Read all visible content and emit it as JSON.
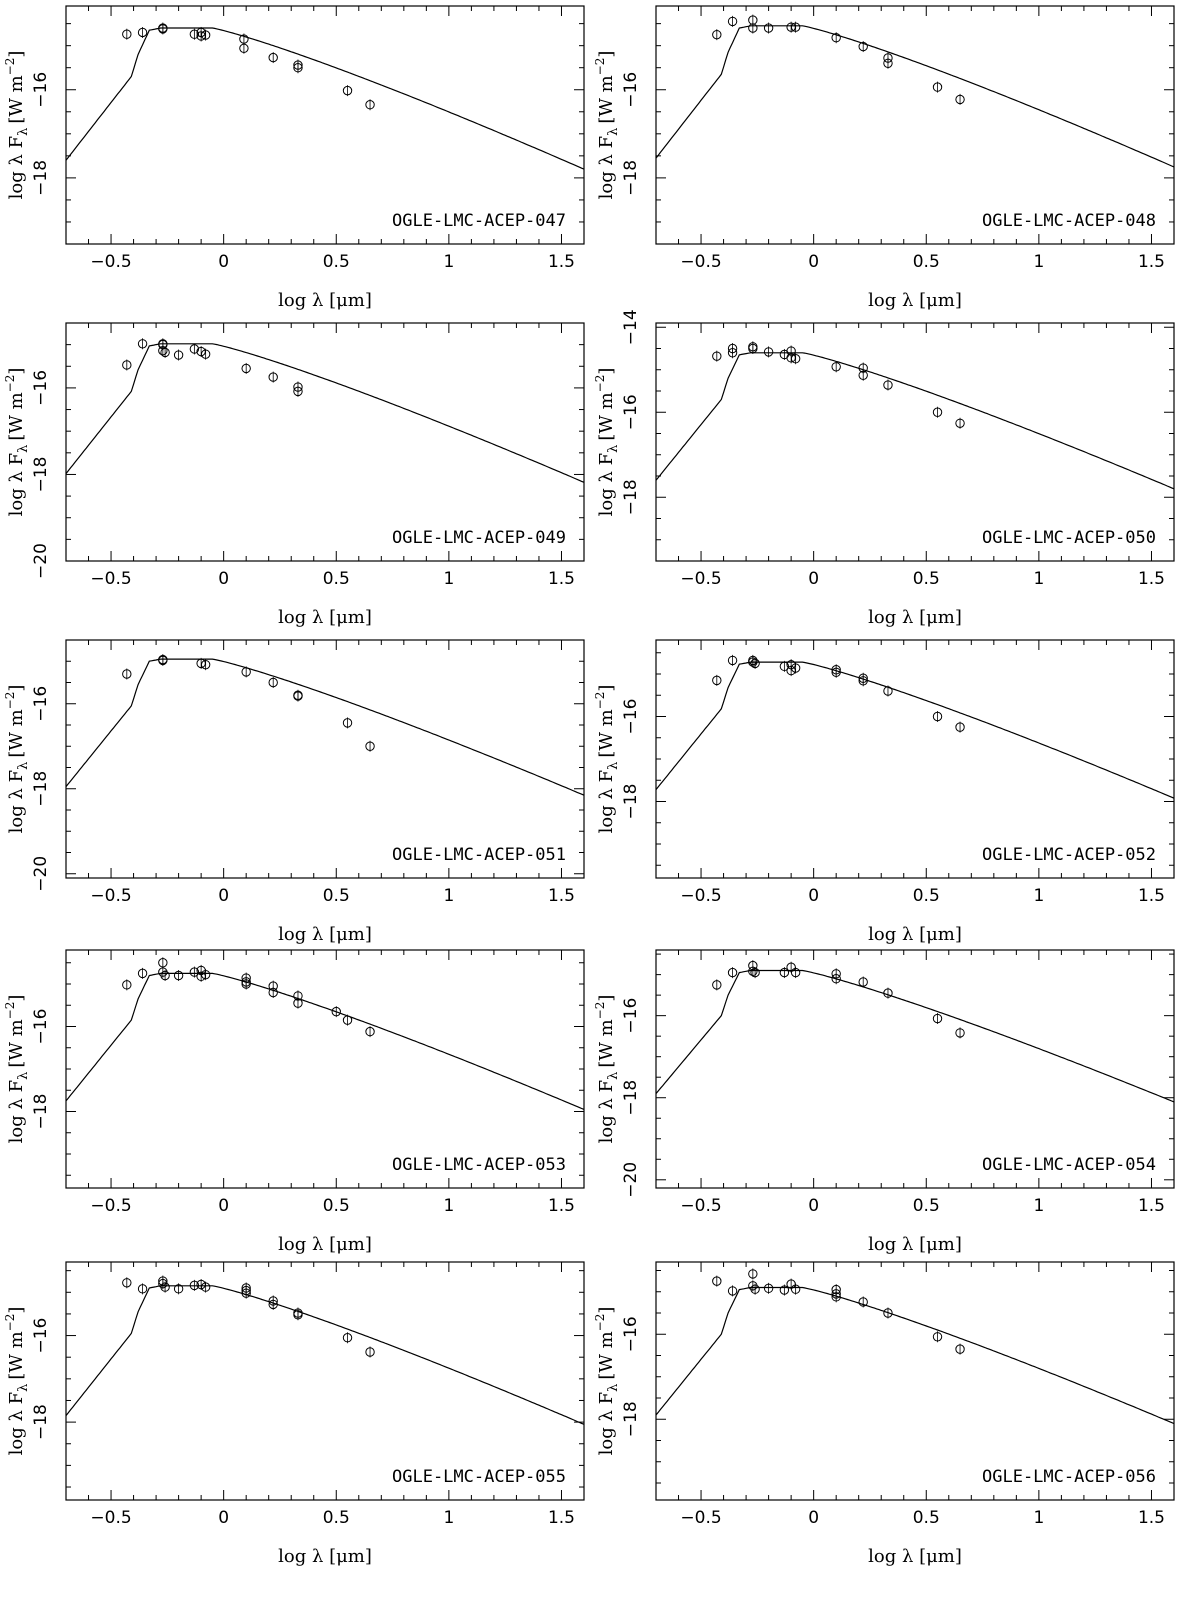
{
  "figure": {
    "xlabel": "log λ [μm]",
    "ylabel_main": "log λ F",
    "ylabel_sub": "λ",
    "ylabel_units": "[W m",
    "ylabel_sup": "−2",
    "ylabel_close": "]"
  },
  "chart_data": [
    {
      "type": "scatter",
      "label": "OGLE-LMC-ACEP-047",
      "xlim": [
        -0.7,
        1.6
      ],
      "ylim": [
        -19.5,
        -14.1
      ],
      "xticks": [
        -0.5,
        0,
        0.5,
        1,
        1.5
      ],
      "xtick_labels": [
        "−0.5",
        "0",
        "0.5",
        "1",
        "1.5"
      ],
      "yticks": [
        -16,
        -18
      ],
      "ytick_labels": [
        "−16",
        "−18"
      ],
      "model_peak": -14.6,
      "points": [
        [
          -0.43,
          -14.74
        ],
        [
          -0.36,
          -14.7
        ],
        [
          -0.27,
          -14.6
        ],
        [
          -0.27,
          -14.62
        ],
        [
          -0.13,
          -14.74
        ],
        [
          -0.1,
          -14.7
        ],
        [
          -0.08,
          -14.76
        ],
        [
          -0.1,
          -14.78
        ],
        [
          0.09,
          -14.85
        ],
        [
          0.09,
          -15.06
        ],
        [
          0.22,
          -15.27
        ],
        [
          0.33,
          -15.44
        ],
        [
          0.33,
          -15.5
        ],
        [
          0.55,
          -16.02
        ],
        [
          0.65,
          -16.34
        ]
      ]
    },
    {
      "type": "scatter",
      "label": "OGLE-LMC-ACEP-048",
      "xlim": [
        -0.7,
        1.6
      ],
      "ylim": [
        -19.5,
        -14.1
      ],
      "xticks": [
        -0.5,
        0,
        0.5,
        1,
        1.5
      ],
      "xtick_labels": [
        "−0.5",
        "0",
        "0.5",
        "1",
        "1.5"
      ],
      "yticks": [
        -16,
        -18
      ],
      "ytick_labels": [
        "−16",
        "−18"
      ],
      "model_peak": -14.55,
      "points": [
        [
          -0.43,
          -14.75
        ],
        [
          -0.36,
          -14.45
        ],
        [
          -0.27,
          -14.42
        ],
        [
          -0.27,
          -14.6
        ],
        [
          -0.2,
          -14.6
        ],
        [
          -0.1,
          -14.58
        ],
        [
          -0.08,
          -14.58
        ],
        [
          0.1,
          -14.82
        ],
        [
          0.22,
          -15.02
        ],
        [
          0.33,
          -15.28
        ],
        [
          0.33,
          -15.4
        ],
        [
          0.55,
          -15.94
        ],
        [
          0.65,
          -16.22
        ]
      ]
    },
    {
      "type": "scatter",
      "label": "OGLE-LMC-ACEP-049",
      "xlim": [
        -0.7,
        1.6
      ],
      "ylim": [
        -20.0,
        -14.5
      ],
      "xticks": [
        -0.5,
        0,
        0.5,
        1,
        1.5
      ],
      "xtick_labels": [
        "−0.5",
        "0",
        "0.5",
        "1",
        "1.5"
      ],
      "yticks": [
        -16,
        -18,
        -20
      ],
      "ytick_labels": [
        "−16",
        "−18",
        "−20"
      ],
      "model_peak": -14.98,
      "points": [
        [
          -0.43,
          -15.47
        ],
        [
          -0.36,
          -14.98
        ],
        [
          -0.27,
          -15.0
        ],
        [
          -0.27,
          -14.98
        ],
        [
          -0.27,
          -15.14
        ],
        [
          -0.26,
          -15.18
        ],
        [
          -0.2,
          -15.24
        ],
        [
          -0.13,
          -15.1
        ],
        [
          -0.1,
          -15.16
        ],
        [
          -0.08,
          -15.22
        ],
        [
          0.1,
          -15.55
        ],
        [
          0.22,
          -15.75
        ],
        [
          0.33,
          -15.98
        ],
        [
          0.33,
          -16.08
        ]
      ]
    },
    {
      "type": "scatter",
      "label": "OGLE-LMC-ACEP-050",
      "xlim": [
        -0.7,
        1.6
      ],
      "ylim": [
        -19.5,
        -13.9
      ],
      "xticks": [
        -0.5,
        0,
        0.5,
        1,
        1.5
      ],
      "xtick_labels": [
        "−0.5",
        "0",
        "0.5",
        "1",
        "1.5"
      ],
      "yticks": [
        -14,
        -16,
        -18
      ],
      "ytick_labels": [
        "−14",
        "−16",
        "−18"
      ],
      "model_peak": -14.6,
      "points": [
        [
          -0.43,
          -14.68
        ],
        [
          -0.36,
          -14.5
        ],
        [
          -0.36,
          -14.6
        ],
        [
          -0.27,
          -14.46
        ],
        [
          -0.27,
          -14.5
        ],
        [
          -0.2,
          -14.58
        ],
        [
          -0.13,
          -14.64
        ],
        [
          -0.1,
          -14.56
        ],
        [
          -0.1,
          -14.72
        ],
        [
          -0.08,
          -14.74
        ],
        [
          0.1,
          -14.93
        ],
        [
          0.22,
          -14.96
        ],
        [
          0.22,
          -15.13
        ],
        [
          0.33,
          -15.36
        ],
        [
          0.55,
          -16.0
        ],
        [
          0.65,
          -16.26
        ]
      ]
    },
    {
      "type": "scatter",
      "label": "OGLE-LMC-ACEP-051",
      "xlim": [
        -0.7,
        1.6
      ],
      "ylim": [
        -20.1,
        -14.5
      ],
      "xticks": [
        -0.5,
        0,
        0.5,
        1,
        1.5
      ],
      "xtick_labels": [
        "−0.5",
        "0",
        "0.5",
        "1",
        "1.5"
      ],
      "yticks": [
        -16,
        -18,
        -20
      ],
      "ytick_labels": [
        "−16",
        "−18",
        "−20"
      ],
      "model_peak": -14.95,
      "points": [
        [
          -0.43,
          -15.3
        ],
        [
          -0.27,
          -14.96
        ],
        [
          -0.27,
          -14.98
        ],
        [
          -0.1,
          -15.05
        ],
        [
          -0.08,
          -15.08
        ],
        [
          0.1,
          -15.25
        ],
        [
          0.22,
          -15.5
        ],
        [
          0.33,
          -15.8
        ],
        [
          0.33,
          -15.82
        ],
        [
          0.55,
          -16.45
        ],
        [
          0.65,
          -17.0
        ]
      ]
    },
    {
      "type": "scatter",
      "label": "OGLE-LMC-ACEP-052",
      "xlim": [
        -0.7,
        1.6
      ],
      "ylim": [
        -19.8,
        -14.2
      ],
      "xticks": [
        -0.5,
        0,
        0.5,
        1,
        1.5
      ],
      "xtick_labels": [
        "−0.5",
        "0",
        "0.5",
        "1",
        "1.5"
      ],
      "yticks": [
        -16,
        -18
      ],
      "ytick_labels": [
        "−16",
        "−18"
      ],
      "model_peak": -14.72,
      "points": [
        [
          -0.43,
          -15.15
        ],
        [
          -0.36,
          -14.68
        ],
        [
          -0.27,
          -14.68
        ],
        [
          -0.27,
          -14.72
        ],
        [
          -0.26,
          -14.75
        ],
        [
          -0.13,
          -14.82
        ],
        [
          -0.1,
          -14.78
        ],
        [
          -0.08,
          -14.86
        ],
        [
          -0.1,
          -14.92
        ],
        [
          0.1,
          -14.9
        ],
        [
          0.1,
          -14.96
        ],
        [
          0.22,
          -15.1
        ],
        [
          0.22,
          -15.16
        ],
        [
          0.33,
          -15.4
        ],
        [
          0.55,
          -16.0
        ],
        [
          0.65,
          -16.25
        ]
      ]
    },
    {
      "type": "scatter",
      "label": "OGLE-LMC-ACEP-053",
      "xlim": [
        -0.7,
        1.6
      ],
      "ylim": [
        -19.8,
        -14.2
      ],
      "xticks": [
        -0.5,
        0,
        0.5,
        1,
        1.5
      ],
      "xtick_labels": [
        "−0.5",
        "0",
        "0.5",
        "1",
        "1.5"
      ],
      "yticks": [
        -16,
        -18
      ],
      "ytick_labels": [
        "−16",
        "−18"
      ],
      "model_peak": -14.75,
      "points": [
        [
          -0.43,
          -15.02
        ],
        [
          -0.36,
          -14.75
        ],
        [
          -0.27,
          -14.5
        ],
        [
          -0.27,
          -14.72
        ],
        [
          -0.26,
          -14.8
        ],
        [
          -0.2,
          -14.8
        ],
        [
          -0.13,
          -14.72
        ],
        [
          -0.1,
          -14.68
        ],
        [
          -0.1,
          -14.82
        ],
        [
          -0.08,
          -14.78
        ],
        [
          0.1,
          -14.86
        ],
        [
          0.1,
          -14.95
        ],
        [
          0.1,
          -15.0
        ],
        [
          0.22,
          -15.05
        ],
        [
          0.22,
          -15.2
        ],
        [
          0.33,
          -15.28
        ],
        [
          0.33,
          -15.45
        ],
        [
          0.5,
          -15.65
        ],
        [
          0.55,
          -15.85
        ],
        [
          0.65,
          -16.12
        ]
      ]
    },
    {
      "type": "scatter",
      "label": "OGLE-LMC-ACEP-054",
      "xlim": [
        -0.7,
        1.6
      ],
      "ylim": [
        -20.2,
        -14.4
      ],
      "xticks": [
        -0.5,
        0,
        0.5,
        1,
        1.5
      ],
      "xtick_labels": [
        "−0.5",
        "0",
        "0.5",
        "1",
        "1.5"
      ],
      "yticks": [
        -16,
        -18,
        -20
      ],
      "ytick_labels": [
        "−16",
        "−18",
        "−20"
      ],
      "model_peak": -14.9,
      "points": [
        [
          -0.43,
          -15.25
        ],
        [
          -0.36,
          -14.95
        ],
        [
          -0.27,
          -14.78
        ],
        [
          -0.27,
          -14.92
        ],
        [
          -0.26,
          -14.95
        ],
        [
          -0.13,
          -14.95
        ],
        [
          -0.1,
          -14.82
        ],
        [
          -0.08,
          -14.95
        ],
        [
          0.1,
          -14.98
        ],
        [
          0.1,
          -15.1
        ],
        [
          0.22,
          -15.18
        ],
        [
          0.33,
          -15.45
        ],
        [
          0.55,
          -16.07
        ],
        [
          0.65,
          -16.42
        ]
      ]
    },
    {
      "type": "scatter",
      "label": "OGLE-LMC-ACEP-055",
      "xlim": [
        -0.7,
        1.6
      ],
      "ylim": [
        -19.8,
        -14.3
      ],
      "xticks": [
        -0.5,
        0,
        0.5,
        1,
        1.5
      ],
      "xtick_labels": [
        "−0.5",
        "0",
        "0.5",
        "1",
        "1.5"
      ],
      "yticks": [
        -16,
        -18
      ],
      "ytick_labels": [
        "−16",
        "−18"
      ],
      "model_peak": -14.85,
      "points": [
        [
          -0.43,
          -14.78
        ],
        [
          -0.36,
          -14.92
        ],
        [
          -0.27,
          -14.74
        ],
        [
          -0.27,
          -14.8
        ],
        [
          -0.26,
          -14.88
        ],
        [
          -0.2,
          -14.92
        ],
        [
          -0.13,
          -14.84
        ],
        [
          -0.1,
          -14.82
        ],
        [
          -0.08,
          -14.88
        ],
        [
          0.1,
          -14.9
        ],
        [
          0.1,
          -14.96
        ],
        [
          0.1,
          -15.02
        ],
        [
          0.22,
          -15.2
        ],
        [
          0.22,
          -15.28
        ],
        [
          0.33,
          -15.48
        ],
        [
          0.33,
          -15.52
        ],
        [
          0.55,
          -16.05
        ],
        [
          0.65,
          -16.38
        ]
      ]
    },
    {
      "type": "scatter",
      "label": "OGLE-LMC-ACEP-056",
      "xlim": [
        -0.7,
        1.6
      ],
      "ylim": [
        -19.9,
        -14.3
      ],
      "xticks": [
        -0.5,
        0,
        0.5,
        1,
        1.5
      ],
      "xtick_labels": [
        "−0.5",
        "0",
        "0.5",
        "1",
        "1.5"
      ],
      "yticks": [
        -16,
        -18
      ],
      "ytick_labels": [
        "−16",
        "−18"
      ],
      "model_peak": -14.9,
      "points": [
        [
          -0.43,
          -14.75
        ],
        [
          -0.36,
          -14.98
        ],
        [
          -0.27,
          -14.58
        ],
        [
          -0.27,
          -14.86
        ],
        [
          -0.26,
          -14.94
        ],
        [
          -0.2,
          -14.92
        ],
        [
          -0.13,
          -14.96
        ],
        [
          -0.1,
          -14.82
        ],
        [
          -0.08,
          -14.94
        ],
        [
          0.1,
          -14.95
        ],
        [
          0.1,
          -15.05
        ],
        [
          0.1,
          -15.12
        ],
        [
          0.22,
          -15.24
        ],
        [
          0.33,
          -15.5
        ],
        [
          0.55,
          -16.06
        ],
        [
          0.65,
          -16.35
        ]
      ]
    }
  ]
}
